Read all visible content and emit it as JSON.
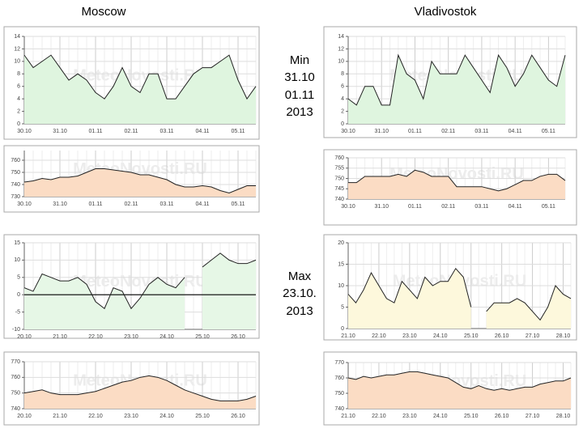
{
  "cities": [
    "Moscow",
    "Vladivostok"
  ],
  "min_label": [
    "Min",
    "31.10",
    "01.11",
    "2013"
  ],
  "max_label": [
    "Max",
    "23.10.",
    "2013"
  ],
  "watermark": "MeteoNovosti.RU",
  "chart_data": [
    {
      "type": "line",
      "color": "#222222",
      "fill": "#dff5df",
      "categories": [
        "30.10",
        null,
        null,
        null,
        "31.10",
        null,
        null,
        null,
        "01.11",
        null,
        null,
        null,
        "02.11",
        null,
        null,
        null,
        "03.11",
        null,
        null,
        null,
        "04.11",
        null,
        null,
        null,
        "05.11",
        null,
        null
      ],
      "values": [
        11,
        9,
        10,
        11,
        9,
        7,
        8,
        7,
        5,
        4,
        6,
        9,
        6,
        5,
        8,
        8,
        4,
        4,
        6,
        8,
        9,
        9,
        10,
        11,
        7,
        4,
        6
      ],
      "ylim": [
        0,
        14
      ],
      "yticks": [
        0,
        2,
        4,
        6,
        8,
        10,
        12,
        14
      ],
      "grid": true
    },
    {
      "type": "line",
      "color": "#222222",
      "fill": "#fbdcc4",
      "categories": [
        "30.10",
        null,
        null,
        null,
        "31.10",
        null,
        null,
        null,
        "01.11",
        null,
        null,
        null,
        "02.11",
        null,
        null,
        null,
        "03.11",
        null,
        null,
        null,
        "04.11",
        null,
        null,
        null,
        "05.11",
        null,
        null
      ],
      "values": [
        742,
        743,
        745,
        744,
        746,
        746,
        747,
        750,
        753,
        753,
        752,
        751,
        750,
        748,
        748,
        746,
        744,
        740,
        738,
        738,
        739,
        738,
        735,
        733,
        736,
        739,
        739
      ],
      "ylim": [
        730,
        768
      ],
      "yticks": [
        730,
        740,
        750,
        760
      ],
      "grid": true
    },
    {
      "type": "line",
      "color": "#222222",
      "fill": "#e6f7e6",
      "categories": [
        "20.10",
        null,
        null,
        null,
        "21.10",
        null,
        null,
        null,
        "22.10",
        null,
        null,
        null,
        "23.10",
        null,
        null,
        null,
        "24.10",
        null,
        null,
        null,
        "25.10",
        null,
        null,
        null,
        "26.10",
        null,
        null
      ],
      "values": [
        2,
        1,
        6,
        5,
        4,
        4,
        5,
        3,
        -2,
        -4,
        2,
        1,
        -4,
        -1,
        3,
        5,
        3,
        2,
        5,
        null,
        8,
        10,
        12,
        10,
        9,
        9,
        10
      ],
      "ylim": [
        -10,
        15
      ],
      "yticks": [
        -10,
        -5,
        0,
        5,
        10,
        15
      ],
      "grid": true
    },
    {
      "type": "line",
      "color": "#222222",
      "fill": "#fbdcc4",
      "categories": [
        "20.10",
        null,
        null,
        null,
        "21.10",
        null,
        null,
        null,
        "22.10",
        null,
        null,
        null,
        "23.10",
        null,
        null,
        null,
        "24.10",
        null,
        null,
        null,
        "25.10",
        null,
        null,
        null,
        "26.10",
        null,
        null
      ],
      "values": [
        750,
        751,
        752,
        750,
        749,
        749,
        749,
        750,
        751,
        753,
        755,
        757,
        758,
        760,
        761,
        760,
        758,
        755,
        752,
        750,
        748,
        746,
        745,
        745,
        745,
        746,
        748
      ],
      "ylim": [
        740,
        770
      ],
      "yticks": [
        740,
        750,
        760,
        770
      ],
      "grid": true
    },
    {
      "type": "line",
      "color": "#222222",
      "fill": "#dff5df",
      "categories": [
        "30.10",
        null,
        null,
        null,
        "31.10",
        null,
        null,
        null,
        "01.11",
        null,
        null,
        null,
        "02.11",
        null,
        null,
        null,
        "03.11",
        null,
        null,
        null,
        "04.11",
        null,
        null,
        null,
        "05.11",
        null,
        null
      ],
      "values": [
        4,
        3,
        6,
        6,
        3,
        3,
        11,
        8,
        7,
        4,
        10,
        8,
        8,
        8,
        11,
        9,
        7,
        5,
        11,
        9,
        6,
        8,
        11,
        9,
        7,
        6,
        11
      ],
      "ylim": [
        0,
        14
      ],
      "yticks": [
        0,
        2,
        4,
        6,
        8,
        10,
        12,
        14
      ],
      "grid": true
    },
    {
      "type": "line",
      "color": "#222222",
      "fill": "#fbdcc4",
      "categories": [
        "30.10",
        null,
        null,
        null,
        "31.10",
        null,
        null,
        null,
        "01.11",
        null,
        null,
        null,
        "02.11",
        null,
        null,
        null,
        "03.11",
        null,
        null,
        null,
        "04.11",
        null,
        null,
        null,
        "05.11",
        null,
        null
      ],
      "values": [
        748,
        748,
        751,
        751,
        751,
        751,
        752,
        751,
        754,
        753,
        751,
        751,
        751,
        746,
        746,
        746,
        746,
        745,
        744,
        745,
        747,
        749,
        749,
        751,
        752,
        752,
        749
      ],
      "ylim": [
        740,
        760
      ],
      "yticks": [
        740,
        745,
        750,
        755,
        760
      ],
      "grid": true
    },
    {
      "type": "line",
      "color": "#222222",
      "fill": "#fdf8dc",
      "categories": [
        "21.10",
        null,
        null,
        null,
        "22.10",
        null,
        null,
        null,
        "23.10",
        null,
        null,
        null,
        "24.10",
        null,
        null,
        null,
        "25.10",
        null,
        null,
        null,
        "26.10",
        null,
        null,
        null,
        "27.10",
        null,
        null,
        null,
        "28.10",
        null
      ],
      "values": [
        8,
        6,
        9,
        13,
        10,
        7,
        6,
        11,
        9,
        7,
        12,
        10,
        11,
        11,
        14,
        12,
        5,
        null,
        4,
        6,
        6,
        6,
        7,
        6,
        4,
        2,
        5,
        10,
        8,
        7
      ],
      "ylim": [
        0,
        20
      ],
      "yticks": [
        0,
        5,
        10,
        15,
        20
      ],
      "grid": true
    },
    {
      "type": "line",
      "color": "#222222",
      "fill": "#fbdcc4",
      "categories": [
        "21.10",
        null,
        null,
        null,
        "22.10",
        null,
        null,
        null,
        "23.10",
        null,
        null,
        null,
        "24.10",
        null,
        null,
        null,
        "25.10",
        null,
        null,
        null,
        "26.10",
        null,
        null,
        null,
        "27.10",
        null,
        null,
        null,
        "28.10",
        null
      ],
      "values": [
        760,
        759,
        761,
        760,
        761,
        762,
        762,
        763,
        764,
        764,
        763,
        762,
        761,
        760,
        757,
        754,
        753,
        755,
        753,
        752,
        753,
        752,
        753,
        754,
        754,
        756,
        757,
        758,
        758,
        760
      ],
      "ylim": [
        740,
        770
      ],
      "yticks": [
        740,
        750,
        760,
        770
      ],
      "grid": true
    }
  ]
}
